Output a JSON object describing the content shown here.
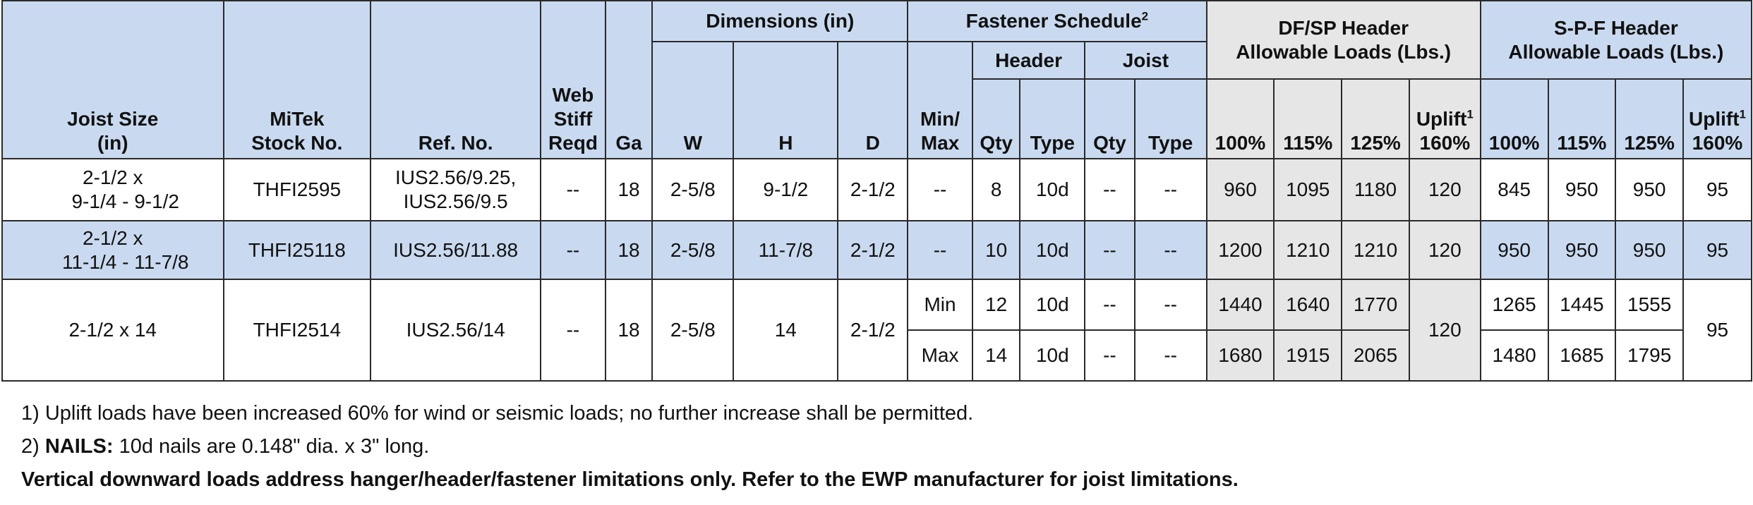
{
  "headers": {
    "joist_size": [
      "Joist Size",
      "(in)"
    ],
    "stock_no": [
      "MiTek",
      "Stock No."
    ],
    "ref_no": "Ref. No.",
    "web_stiff": [
      "Web",
      "Stiff",
      "Reqd"
    ],
    "ga": "Ga",
    "dimensions": "Dimensions (in)",
    "dim_w": "W",
    "dim_h": "H",
    "dim_d": "D",
    "fastener_schedule": "Fastener Schedule",
    "fastener_sup": "2",
    "min_max": [
      "Min/",
      "Max"
    ],
    "header": "Header",
    "joist": "Joist",
    "qty": "Qty",
    "type": "Type",
    "dfsp": [
      "DF/SP Header",
      "Allowable Loads (Lbs.)"
    ],
    "spf": [
      "S-P-F Header",
      "Allowable Loads (Lbs.)"
    ],
    "p100": "100%",
    "p115": "115%",
    "p125": "125%",
    "uplift": "Uplift",
    "uplift_sup": "1",
    "p160": "160%"
  },
  "rows": [
    {
      "joist_size": [
        "2-1/2  x",
        "9-1/4 - 9-1/2"
      ],
      "stock_no": "THFI2595",
      "ref_no": [
        "IUS2.56/9.25,",
        "IUS2.56/9.5"
      ],
      "web_stiff": "--",
      "ga": "18",
      "w": "2-5/8",
      "h": "9-1/2",
      "d": "2-1/2",
      "min_max": "--",
      "header_qty": "8",
      "header_type": "10d",
      "joist_qty": "--",
      "joist_type": "--",
      "df_100": "960",
      "df_115": "1095",
      "df_125": "1180",
      "df_uplift": "120",
      "spf_100": "845",
      "spf_115": "950",
      "spf_125": "950",
      "spf_uplift": "95"
    },
    {
      "joist_size": [
        "2-1/2  x",
        "11-1/4 - 11-7/8"
      ],
      "stock_no": "THFI25118",
      "ref_no": "IUS2.56/11.88",
      "web_stiff": "--",
      "ga": "18",
      "w": "2-5/8",
      "h": "11-7/8",
      "d": "2-1/2",
      "min_max": "--",
      "header_qty": "10",
      "header_type": "10d",
      "joist_qty": "--",
      "joist_type": "--",
      "df_100": "1200",
      "df_115": "1210",
      "df_125": "1210",
      "df_uplift": "120",
      "spf_100": "950",
      "spf_115": "950",
      "spf_125": "950",
      "spf_uplift": "95"
    },
    {
      "joist_size": "2-1/2  x  14",
      "stock_no": "THFI2514",
      "ref_no": "IUS2.56/14",
      "web_stiff": "--",
      "ga": "18",
      "w": "2-5/8",
      "h": "14",
      "d": "2-1/2",
      "df_uplift": "120",
      "spf_uplift": "95",
      "sub": [
        {
          "min_max": "Min",
          "header_qty": "12",
          "header_type": "10d",
          "joist_qty": "--",
          "joist_type": "--",
          "df_100": "1440",
          "df_115": "1640",
          "df_125": "1770",
          "spf_100": "1265",
          "spf_115": "1445",
          "spf_125": "1555"
        },
        {
          "min_max": "Max",
          "header_qty": "14",
          "header_type": "10d",
          "joist_qty": "--",
          "joist_type": "--",
          "df_100": "1680",
          "df_115": "1915",
          "df_125": "2065",
          "spf_100": "1480",
          "spf_115": "1685",
          "spf_125": "1795"
        }
      ]
    }
  ],
  "notes": {
    "note1": "1) Uplift loads have been increased 60% for wind or seismic loads; no further increase shall be permitted.",
    "note2_prefix": "2) ",
    "note2_bold": "NAILS:",
    "note2_text": " 10d nails are 0.148\" dia. x 3\" long.",
    "note3": "Vertical downward loads address hanger/header/fastener limitations only. Refer to the EWP manufacturer for joist limitations."
  }
}
